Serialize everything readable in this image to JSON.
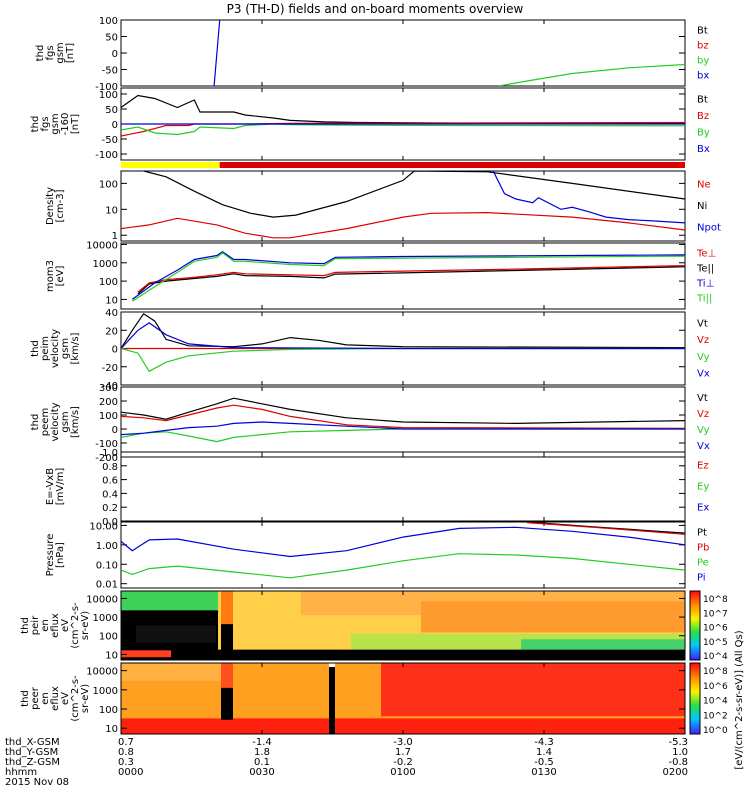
{
  "title": "P3 (TH-D) fields and on-board moments overview",
  "colors": {
    "black": "#000000",
    "red": "#dd0000",
    "green": "#22cc22",
    "blue": "#0000dd",
    "yellow": "#ffff00"
  },
  "chart_data": [
    {
      "type": "line",
      "title": "thd fgs gsm [nT]",
      "ylabel": [
        "thd",
        "fgs",
        "gsm",
        "[nT]"
      ],
      "ylim": [
        -100,
        100
      ],
      "yticks": [
        100,
        50,
        0,
        -50,
        -100
      ],
      "legend": [
        {
          "name": "Bt",
          "color": "black"
        },
        {
          "name": "bz",
          "color": "red"
        },
        {
          "name": "by",
          "color": "green"
        },
        {
          "name": "bx",
          "color": "blue"
        }
      ],
      "series": [
        {
          "name": "bx",
          "color": "blue",
          "x": [
            0.165,
            0.175
          ],
          "y": [
            -100,
            100
          ]
        },
        {
          "name": "by",
          "color": "green",
          "x": [
            0.67,
            0.72,
            0.8,
            0.9,
            1.0
          ],
          "y": [
            -100,
            -85,
            -62,
            -45,
            -35
          ]
        }
      ]
    },
    {
      "type": "line",
      "title": "thd fgs gsm -160 [nT]",
      "ylabel": [
        "thd",
        "fgs",
        "gsm",
        "-160",
        "[nT]"
      ],
      "ylim": [
        -120,
        120
      ],
      "yticks": [
        100,
        50,
        0,
        -50,
        -100
      ],
      "legend": [
        {
          "name": "Bt",
          "color": "black"
        },
        {
          "name": "Bz",
          "color": "red"
        },
        {
          "name": "By",
          "color": "green"
        },
        {
          "name": "Bx",
          "color": "blue"
        }
      ],
      "series": [
        {
          "name": "Bt",
          "color": "black",
          "x": [
            0,
            0.03,
            0.06,
            0.1,
            0.13,
            0.14,
            0.2,
            0.22,
            0.27,
            0.3,
            0.36,
            0.42,
            0.6,
            1.0
          ],
          "y": [
            55,
            95,
            85,
            55,
            80,
            40,
            40,
            30,
            20,
            12,
            7,
            5,
            3,
            3
          ]
        },
        {
          "name": "Bz",
          "color": "red",
          "x": [
            0,
            0.04,
            0.08,
            0.12,
            0.13,
            0.2,
            0.22,
            0.3,
            0.5,
            1.0
          ],
          "y": [
            -40,
            -25,
            -5,
            -5,
            0,
            0,
            0,
            2,
            3,
            5
          ]
        },
        {
          "name": "By",
          "color": "green",
          "x": [
            0,
            0.03,
            0.06,
            0.1,
            0.13,
            0.14,
            0.2,
            0.22,
            0.27,
            0.3,
            0.4,
            0.6,
            1.0
          ],
          "y": [
            -20,
            -10,
            -30,
            -35,
            -25,
            -10,
            -15,
            -5,
            0,
            -2,
            -4,
            -5,
            -6
          ]
        },
        {
          "name": "Bx",
          "color": "blue",
          "x": [
            0,
            0.5,
            1.0
          ],
          "y": [
            0,
            0,
            0
          ]
        }
      ]
    },
    {
      "type": "bar",
      "title": "mode bar",
      "segments": [
        {
          "from": 0.0,
          "to": 0.175,
          "color": "yellow"
        },
        {
          "from": 0.175,
          "to": 1.0,
          "color": "red"
        }
      ]
    },
    {
      "type": "line",
      "title": "Density [cm-3]",
      "ylabel": [
        "Density",
        "[cm-3]"
      ],
      "yscale": "log",
      "ylim": [
        0.6,
        300
      ],
      "yticks": [
        100,
        10,
        1
      ],
      "ytick_labels": [
        "100",
        "10",
        "1"
      ],
      "legend": [
        {
          "name": "Ne",
          "color": "red"
        },
        {
          "name": "Ni",
          "color": "black"
        },
        {
          "name": "Npot",
          "color": "blue"
        }
      ],
      "series": [
        {
          "name": "Ni",
          "color": "black",
          "x": [
            0.04,
            0.08,
            0.13,
            0.18,
            0.23,
            0.27,
            0.31,
            0.4,
            0.5,
            0.52,
            0.65,
            0.8,
            1.0
          ],
          "y": [
            300,
            180,
            50,
            15,
            7,
            5,
            6,
            20,
            130,
            300,
            280,
            100,
            25
          ]
        },
        {
          "name": "Ne",
          "color": "red",
          "x": [
            0,
            0.05,
            0.1,
            0.17,
            0.22,
            0.27,
            0.3,
            0.4,
            0.5,
            0.55,
            0.65,
            0.8,
            0.9,
            1.0
          ],
          "y": [
            1.8,
            2.5,
            4.5,
            2.5,
            1.2,
            0.8,
            0.8,
            1.8,
            5,
            7,
            7.5,
            5,
            3,
            1.6
          ]
        },
        {
          "name": "Npot",
          "color": "blue",
          "x": [
            0.66,
            0.68,
            0.7,
            0.73,
            0.74,
            0.78,
            0.8,
            0.83,
            0.86,
            0.9,
            0.95,
            1.0
          ],
          "y": [
            300,
            40,
            25,
            18,
            28,
            10,
            12,
            8,
            5,
            4,
            3.5,
            3
          ]
        }
      ]
    },
    {
      "type": "line",
      "title": "mom3 [eV]",
      "ylabel": [
        "mom3",
        "[eV]"
      ],
      "yscale": "log",
      "ylim": [
        3,
        12000
      ],
      "yticks": [
        10000,
        1000,
        100,
        10
      ],
      "ytick_labels": [
        "10000",
        "1000",
        "100",
        "10"
      ],
      "legend": [
        {
          "name": "Te⊥",
          "color": "red"
        },
        {
          "name": "Te||",
          "color": "black"
        },
        {
          "name": "Ti⊥",
          "color": "blue"
        },
        {
          "name": "Ti||",
          "color": "green"
        }
      ],
      "series": [
        {
          "name": "Te||",
          "color": "black",
          "x": [
            0.03,
            0.05,
            0.08,
            0.12,
            0.17,
            0.2,
            0.22,
            0.3,
            0.36,
            0.38,
            0.5,
            0.7,
            1.0
          ],
          "y": [
            20,
            70,
            100,
            130,
            180,
            250,
            200,
            180,
            150,
            240,
            280,
            380,
            600
          ]
        },
        {
          "name": "Te⊥",
          "color": "red",
          "x": [
            0.03,
            0.05,
            0.08,
            0.12,
            0.17,
            0.2,
            0.22,
            0.3,
            0.36,
            0.38,
            0.5,
            0.7,
            1.0
          ],
          "y": [
            25,
            80,
            120,
            150,
            220,
            300,
            250,
            220,
            200,
            300,
            350,
            450,
            700
          ]
        },
        {
          "name": "Ti⊥",
          "color": "blue",
          "x": [
            0.02,
            0.06,
            0.1,
            0.13,
            0.17,
            0.18,
            0.2,
            0.22,
            0.3,
            0.36,
            0.38,
            0.5,
            0.7,
            1.0
          ],
          "y": [
            10,
            80,
            400,
            1500,
            2500,
            4000,
            1500,
            1500,
            1000,
            900,
            2000,
            2200,
            2400,
            2700
          ]
        },
        {
          "name": "Ti||",
          "color": "green",
          "x": [
            0.02,
            0.06,
            0.1,
            0.13,
            0.17,
            0.18,
            0.2,
            0.22,
            0.3,
            0.36,
            0.38,
            0.5,
            0.7,
            1.0
          ],
          "y": [
            8,
            50,
            300,
            1200,
            2000,
            3500,
            1200,
            1200,
            800,
            700,
            1700,
            1800,
            2000,
            2300
          ]
        }
      ]
    },
    {
      "type": "line",
      "title": "thd peim velocity gsm [km/s]",
      "ylabel": [
        "thd",
        "peim",
        "velocity",
        "gsm",
        "[km/s]"
      ],
      "ylim": [
        -40,
        40
      ],
      "yticks": [
        40,
        20,
        0,
        -20,
        -40
      ],
      "legend": [
        {
          "name": "Vt",
          "color": "black"
        },
        {
          "name": "Vz",
          "color": "red"
        },
        {
          "name": "Vy",
          "color": "green"
        },
        {
          "name": "Vx",
          "color": "blue"
        }
      ],
      "series": [
        {
          "name": "Vt",
          "color": "black",
          "x": [
            0,
            0.02,
            0.04,
            0.06,
            0.08,
            0.12,
            0.2,
            0.25,
            0.3,
            0.35,
            0.4,
            0.5,
            1.0
          ],
          "y": [
            0,
            20,
            38,
            30,
            10,
            3,
            2,
            5,
            12,
            9,
            4,
            2,
            1
          ]
        },
        {
          "name": "Vz",
          "color": "red",
          "x": [
            0,
            0.5,
            1.0
          ],
          "y": [
            0,
            0,
            0
          ]
        },
        {
          "name": "Vy",
          "color": "green",
          "x": [
            0,
            0.03,
            0.05,
            0.08,
            0.12,
            0.2,
            0.3,
            0.5,
            1.0
          ],
          "y": [
            0,
            -5,
            -25,
            -15,
            -8,
            -3,
            -1,
            0,
            0
          ]
        },
        {
          "name": "Vx",
          "color": "blue",
          "x": [
            0,
            0.03,
            0.05,
            0.08,
            0.12,
            0.2,
            0.5,
            1.0
          ],
          "y": [
            0,
            20,
            28,
            15,
            5,
            1,
            0,
            0
          ]
        }
      ]
    },
    {
      "type": "line",
      "title": "thd peem velocity gsm [km/s]",
      "ylabel": [
        "thd",
        "peem",
        "velocity",
        "gsm",
        "[km/s]"
      ],
      "ylim": [
        -200,
        300
      ],
      "yticks": [
        300,
        200,
        100,
        0,
        -100,
        -200
      ],
      "legend": [
        {
          "name": "Vt",
          "color": "black"
        },
        {
          "name": "Vz",
          "color": "red"
        },
        {
          "name": "Vy",
          "color": "green"
        },
        {
          "name": "Vx",
          "color": "blue"
        }
      ],
      "series": [
        {
          "name": "Vt",
          "color": "black",
          "x": [
            0,
            0.04,
            0.08,
            0.12,
            0.17,
            0.2,
            0.25,
            0.3,
            0.4,
            0.5,
            0.7,
            1.0
          ],
          "y": [
            120,
            100,
            70,
            120,
            180,
            220,
            180,
            140,
            80,
            50,
            40,
            60
          ]
        },
        {
          "name": "Vz",
          "color": "red",
          "x": [
            0,
            0.04,
            0.08,
            0.12,
            0.17,
            0.2,
            0.25,
            0.3,
            0.4,
            0.5,
            1.0
          ],
          "y": [
            90,
            80,
            60,
            100,
            150,
            170,
            140,
            90,
            30,
            10,
            5
          ]
        },
        {
          "name": "Vy",
          "color": "green",
          "x": [
            0,
            0.04,
            0.08,
            0.12,
            0.17,
            0.2,
            0.25,
            0.3,
            0.4,
            0.5,
            1.0
          ],
          "y": [
            -60,
            -30,
            -20,
            -50,
            -90,
            -60,
            -40,
            -20,
            -10,
            0,
            0
          ]
        },
        {
          "name": "Vx",
          "color": "blue",
          "x": [
            0,
            0.04,
            0.08,
            0.12,
            0.17,
            0.2,
            0.25,
            0.3,
            0.4,
            0.5,
            1.0
          ],
          "y": [
            -40,
            -30,
            -10,
            10,
            20,
            40,
            50,
            40,
            20,
            0,
            0
          ]
        }
      ]
    },
    {
      "type": "line",
      "title": "E=-VxB [mV/m]",
      "ylabel": [
        "E=-VxB",
        "[mV/m]"
      ],
      "ylim": [
        0,
        1
      ],
      "yticks": [
        1.0,
        0.8,
        0.6,
        0.4,
        0.2,
        0.0
      ],
      "ytick_labels": [
        "1.0",
        "0.8",
        "0.6",
        "0.4",
        "0.2",
        "0.0"
      ],
      "legend": [
        {
          "name": "Ez",
          "color": "red"
        },
        {
          "name": "Ey",
          "color": "green"
        },
        {
          "name": "Ex",
          "color": "blue"
        }
      ],
      "series": []
    },
    {
      "type": "line",
      "title": "Pressure [nPa]",
      "ylabel": [
        "Pressure",
        "[nPa]"
      ],
      "yscale": "log",
      "ylim": [
        0.006,
        15
      ],
      "yticks": [
        10,
        1,
        0.1,
        0.01
      ],
      "ytick_labels": [
        "10.00",
        "1.00",
        "0.10",
        "0.01"
      ],
      "legend": [
        {
          "name": "Pt",
          "color": "black"
        },
        {
          "name": "Pb",
          "color": "red"
        },
        {
          "name": "Pe",
          "color": "green"
        },
        {
          "name": "Pi",
          "color": "blue"
        }
      ],
      "series": [
        {
          "name": "Pt",
          "color": "black",
          "x": [
            0.72,
            0.85,
            1.0
          ],
          "y": [
            15,
            8,
            4
          ]
        },
        {
          "name": "Pb",
          "color": "red",
          "x": [
            0.72,
            0.85,
            1.0
          ],
          "y": [
            14,
            7.5,
            3.5
          ]
        },
        {
          "name": "Pi",
          "color": "blue",
          "x": [
            0,
            0.02,
            0.05,
            0.1,
            0.2,
            0.3,
            0.4,
            0.5,
            0.6,
            0.7,
            0.8,
            0.9,
            1.0
          ],
          "y": [
            1.5,
            0.5,
            1.8,
            2.0,
            0.6,
            0.25,
            0.5,
            2.5,
            7,
            8,
            5,
            2.5,
            1.0
          ]
        },
        {
          "name": "Pe",
          "color": "green",
          "x": [
            0,
            0.02,
            0.05,
            0.1,
            0.2,
            0.3,
            0.4,
            0.5,
            0.6,
            0.7,
            0.8,
            0.9,
            1.0
          ],
          "y": [
            0.05,
            0.03,
            0.06,
            0.08,
            0.04,
            0.02,
            0.05,
            0.15,
            0.35,
            0.3,
            0.2,
            0.1,
            0.05
          ]
        }
      ]
    },
    {
      "type": "heatmap",
      "title": "thd peir en eflux",
      "ylabel": [
        "thd",
        "peir",
        "en",
        "eflux",
        "eV",
        "(cm^2-s-",
        "sr-eV)"
      ],
      "yscale": "log",
      "ylim": [
        5,
        25000
      ],
      "yticks": [
        10000,
        1000,
        100,
        10
      ],
      "ytick_labels": [
        "10000",
        "1000",
        "100",
        "10"
      ],
      "colorbar_label": "[eV/(cm^2-s-sr-eV)] (All Qs)",
      "colorbar_ticks": [
        "10^8",
        "10^7",
        "10^6",
        "10^5",
        "10^4"
      ],
      "colorbar_range": [
        4,
        8.5
      ]
    },
    {
      "type": "heatmap",
      "title": "thd peer en eflux",
      "ylabel": [
        "thd",
        "peer",
        "en",
        "eflux",
        "eV",
        "(cm^2-s-",
        "sr-eV)"
      ],
      "yscale": "log",
      "ylim": [
        5,
        25000
      ],
      "yticks": [
        10000,
        1000,
        100,
        10
      ],
      "ytick_labels": [
        "10000",
        "1000",
        "100",
        "10"
      ],
      "colorbar_label": "[eV/(cm^2-s-sr-eV)]",
      "colorbar_ticks": [
        "10^8",
        "10^6",
        "10^4",
        "10^2",
        "10^0"
      ],
      "colorbar_range": [
        0,
        8
      ]
    }
  ],
  "x_axis": {
    "positions": [
      0.0,
      0.25,
      0.5,
      0.75,
      1.0
    ],
    "rows": [
      {
        "label": "thd_X-GSM",
        "values": [
          "0.7",
          "-1.4",
          "-3.0",
          "-4.3",
          "-5.3"
        ]
      },
      {
        "label": "thd_Y-GSM",
        "values": [
          "0.8",
          "1.8",
          "1.7",
          "1.4",
          "1.0"
        ]
      },
      {
        "label": "thd_Z-GSM",
        "values": [
          "0.3",
          "0.1",
          "-0.2",
          "-0.5",
          "-0.8"
        ]
      },
      {
        "label": "hhmm",
        "values": [
          "0000",
          "0030",
          "0100",
          "0130",
          "0200"
        ]
      }
    ],
    "date": "2015 Nov 08"
  }
}
